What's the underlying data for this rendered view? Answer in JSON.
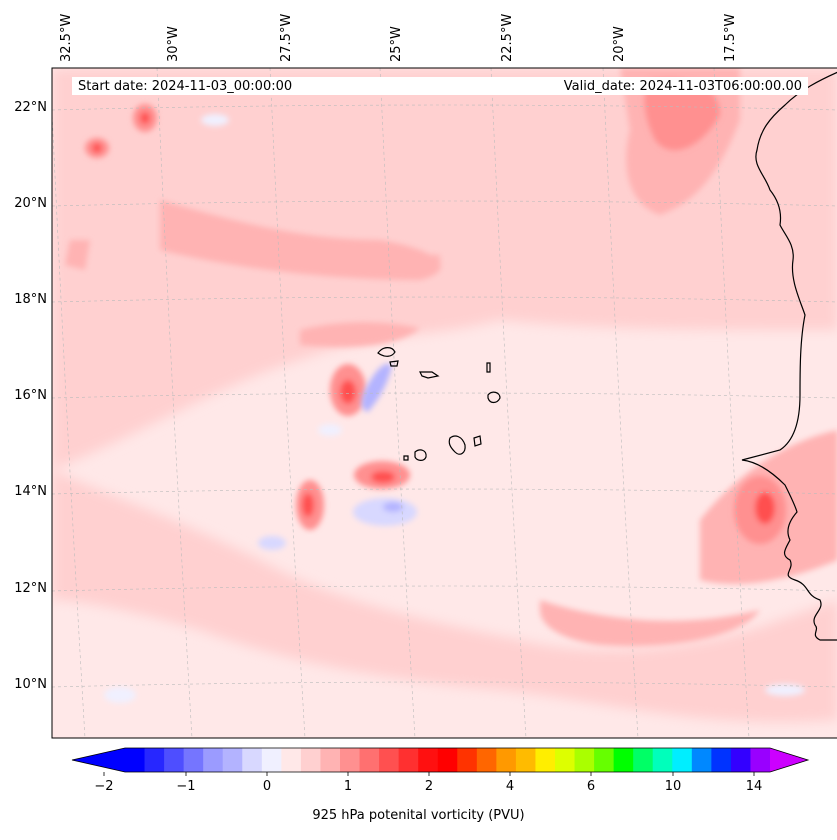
{
  "header": {
    "start_date": "Start date: 2024-11-03_00:00:00",
    "valid_date": "Valid_date: 2024-11-03T06:00:00.00"
  },
  "chart_data": {
    "type": "heatmap",
    "variable": "925 hPa potenital vorticity (PVU)",
    "lon_ticks": [
      "32.5°W",
      "30°W",
      "27.5°W",
      "25°W",
      "22.5°W",
      "20°W",
      "17.5°W"
    ],
    "lat_ticks": [
      "22°N",
      "20°N",
      "18°N",
      "16°N",
      "14°N",
      "12°N",
      "10°N"
    ],
    "lon_range": [
      -33,
      -15
    ],
    "lat_range": [
      9,
      23
    ],
    "grid": true,
    "colorbar": {
      "ticks": [
        "-2",
        "-1",
        "0",
        "1",
        "2",
        "4",
        "6",
        "10",
        "14"
      ],
      "extend": "both",
      "colors": [
        "#0000ff",
        "#2727ff",
        "#4e4eff",
        "#7575ff",
        "#9b9bff",
        "#b3b3ff",
        "#d8d8ff",
        "#f0f0ff",
        "#ffe8e8",
        "#ffd0d0",
        "#ffb3b3",
        "#ff9090",
        "#ff7070",
        "#ff5050",
        "#ff3030",
        "#ff1010",
        "#ff0000",
        "#ff3300",
        "#ff6600",
        "#ff9900",
        "#ffbb00",
        "#ffee00",
        "#ddff00",
        "#aaff00",
        "#66ff00",
        "#00ff00",
        "#00ff66",
        "#00ffbb",
        "#00eeff",
        "#0088ff",
        "#0033ff",
        "#3300ff",
        "#9900ff"
      ],
      "under_color": "#0000ff",
      "over_color": "#cc00ff"
    },
    "features": [
      {
        "name": "Cape Verde islands",
        "type": "coastline"
      },
      {
        "name": "West African coast",
        "type": "coastline"
      }
    ]
  }
}
